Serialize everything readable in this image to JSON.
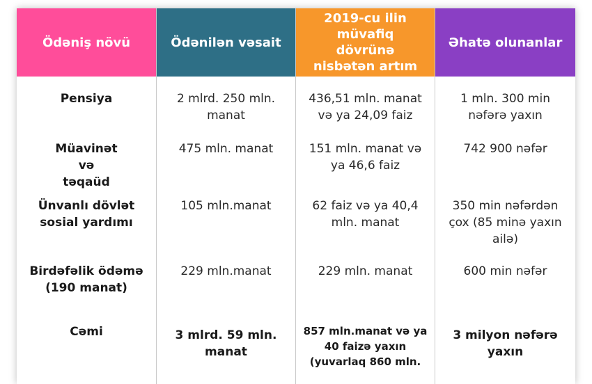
{
  "colors": {
    "col1_header": "#ff4d9a",
    "col2_header": "#2e6f86",
    "col3_header": "#f7972b",
    "col4_header": "#8a3fc4"
  },
  "headers": [
    "Ödəniş növü",
    "Ödənilən vəsait",
    "2019-cu ilin müvafiq dövrünə nisbətən artım",
    "Əhatə olunanlar"
  ],
  "rows": [
    [
      "Pensiya",
      "2 mlrd. 250 mln. manat",
      "436,51 mln. manat və ya 24,09 faiz",
      "1 mln. 300 min nəfərə yaxın"
    ],
    [
      "Müavinət və təqaüd",
      "475 mln. manat",
      "151 mln. manat və ya 46,6 faiz",
      "742 900 nəfər"
    ],
    [
      "Ünvanlı dövlət sosial yardımı",
      "105 mln.manat",
      "62 faiz və ya 40,4 mln. manat",
      "350 min nəfərdən çox (85 minə yaxın ailə)"
    ],
    [
      "Birdəfəlik ödəmə (190 manat)",
      "229 mln.manat",
      "229 mln. manat",
      "600 min nəfər"
    ],
    [
      "Cəmi",
      "3 mlrd. 59 mln. manat",
      "857 mln.manat və ya 40 faizə yaxın (yuvarlaq 860 mln.",
      "3 milyon nəfərə yaxın"
    ]
  ]
}
